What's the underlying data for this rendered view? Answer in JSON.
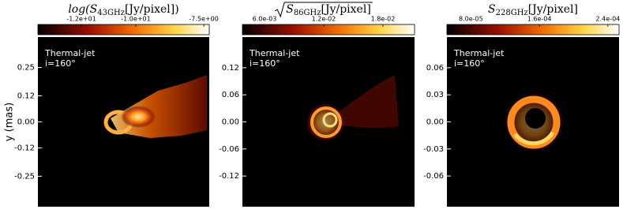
{
  "chart_data": [
    {
      "type": "heatmap",
      "colormap": "afmhot",
      "title_pre": "log(S",
      "title_sub": "43GHz",
      "title_post": "[Jy/pixel])",
      "sqrt": false,
      "clim": [
        -13.6,
        -7.3
      ],
      "cticks": [
        {
          "value": -12,
          "label": "-1.2e+01"
        },
        {
          "value": -10,
          "label": "-1.0e+01"
        },
        {
          "value": -7.5,
          "label": "-7.5e+00"
        }
      ],
      "ylabel": "y (mas)",
      "ylim": [
        -0.39,
        0.39
      ],
      "yticks": [
        0.25,
        0.12,
        {
          "value": 0,
          "label": "0.00"
        },
        -0.12,
        -0.25
      ],
      "annotations": [
        "Thermal-jet",
        "i=160°"
      ]
    },
    {
      "type": "heatmap",
      "colormap": "afmhot",
      "title_pre": "S",
      "title_sub": "86GHz",
      "title_post": "[Jy/pixel]",
      "sqrt": true,
      "clim": [
        0.00376,
        0.0212
      ],
      "cticks": [
        {
          "value": 0.006,
          "label": "6.0e-03"
        },
        {
          "value": 0.012,
          "label": "1.2e-02"
        },
        {
          "value": 0.018,
          "label": "1.8e-02"
        }
      ],
      "ylim": [
        -0.188,
        0.188
      ],
      "yticks": [
        0.12,
        0.06,
        {
          "value": 0,
          "label": "0.00"
        },
        -0.06,
        -0.12
      ],
      "annotations": [
        "Thermal-jet",
        "i=160°"
      ]
    },
    {
      "type": "heatmap",
      "colormap": "afmhot",
      "title_pre": "S",
      "title_sub": "228GHz",
      "title_post": "[Jy/pixel]",
      "sqrt": false,
      "clim": [
        5.2e-05,
        0.000253
      ],
      "cticks": [
        {
          "value": 8e-05,
          "label": "8.0e-05"
        },
        {
          "value": 0.00016,
          "label": "1.6e-04"
        },
        {
          "value": 0.00024,
          "label": "2.4e-04"
        }
      ],
      "ylim": [
        -0.094,
        0.094
      ],
      "yticks": [
        0.06,
        0.03,
        {
          "value": 0,
          "label": "0.00"
        },
        -0.03,
        -0.06
      ],
      "annotations": [
        "Thermal-jet",
        "i=160°"
      ]
    }
  ]
}
